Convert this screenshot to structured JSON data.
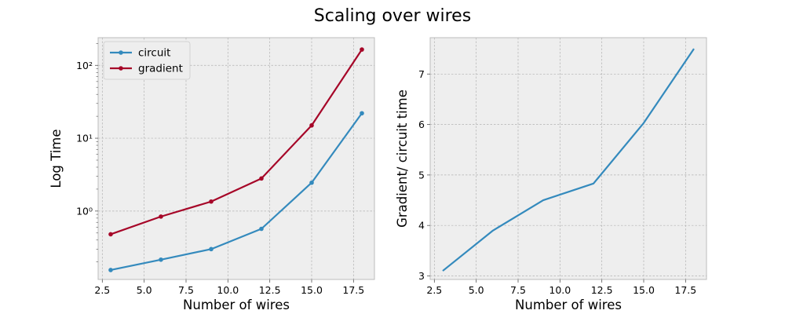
{
  "figure": {
    "title": "Scaling over wires"
  },
  "colors": {
    "background": "#ffffff",
    "axes_face": "#eeeeee",
    "grid": "#b2b2b2",
    "circuit": "#348abd",
    "gradient": "#a60628",
    "spine": "#bcbcbc"
  },
  "chart_data": [
    {
      "type": "line",
      "title": "",
      "xlabel": "Number of wires",
      "ylabel": "Log Time",
      "yscale": "log",
      "xlim": [
        2.25,
        18.75
      ],
      "ylim": [
        0.115,
        240
      ],
      "grid": true,
      "legend": "upper-left",
      "x_ticks": [
        2.5,
        5.0,
        7.5,
        10.0,
        12.5,
        15.0,
        17.5
      ],
      "x_tick_labels": [
        "2.5",
        "5.0",
        "7.5",
        "10.0",
        "12.5",
        "15.0",
        "17.5"
      ],
      "y_ticks": [
        1,
        10,
        100
      ],
      "y_tick_labels": [
        "10⁰",
        "10¹",
        "10²"
      ],
      "x": [
        3,
        6,
        9,
        12,
        15,
        18
      ],
      "series": [
        {
          "name": "circuit",
          "color": "#348abd",
          "marker": "dot",
          "values": [
            0.155,
            0.215,
            0.3,
            0.57,
            2.45,
            22.0
          ]
        },
        {
          "name": "gradient",
          "color": "#a60628",
          "marker": "dot",
          "values": [
            0.48,
            0.84,
            1.35,
            2.8,
            15.0,
            165.0
          ]
        }
      ]
    },
    {
      "type": "line",
      "title": "",
      "xlabel": "Number of wires",
      "ylabel": "Gradient/ circuit time",
      "yscale": "linear",
      "xlim": [
        2.25,
        18.75
      ],
      "ylim": [
        2.93,
        7.72
      ],
      "grid": true,
      "x_ticks": [
        2.5,
        5.0,
        7.5,
        10.0,
        12.5,
        15.0,
        17.5
      ],
      "x_tick_labels": [
        "2.5",
        "5.0",
        "7.5",
        "10.0",
        "12.5",
        "15.0",
        "17.5"
      ],
      "y_ticks": [
        3,
        4,
        5,
        6,
        7
      ],
      "y_tick_labels": [
        "3",
        "4",
        "5",
        "6",
        "7"
      ],
      "x": [
        3,
        6,
        9,
        12,
        15,
        18
      ],
      "series": [
        {
          "color": "#348abd",
          "marker": "none",
          "values": [
            3.1,
            3.9,
            4.5,
            4.83,
            6.03,
            7.5
          ]
        }
      ]
    }
  ]
}
